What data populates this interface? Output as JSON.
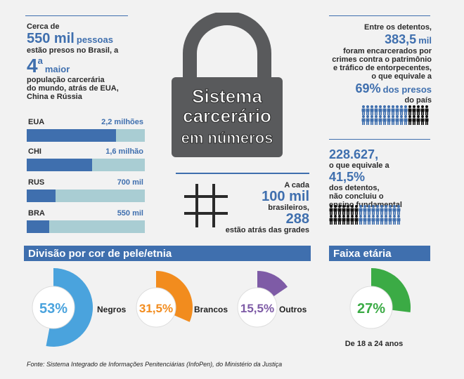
{
  "colors": {
    "accent": "#3f6fae",
    "bar_bg": "#a9cdd3",
    "lock": "#595a5c",
    "negros": "#4aa3dd",
    "brancos": "#f28c1e",
    "outros": "#7e5ba6",
    "faixa": "#3bab45",
    "person_dark": "#111111"
  },
  "top_left": {
    "line1": "Cerca de",
    "big_number": "550 mil",
    "big_suffix": "pessoas",
    "line2": "estão presos no Brasil, a",
    "rank": "4",
    "rank_sup": "a",
    "rank_word": "maior",
    "line3": "população carcerária",
    "line4": "do mundo, atrás de EUA,",
    "line5": "China e Rússia"
  },
  "chart_data": [
    {
      "type": "bar",
      "categories": [
        "EUA",
        "CHI",
        "RUS",
        "BRA"
      ],
      "values": [
        2.2,
        1.6,
        0.7,
        0.55
      ],
      "value_labels": [
        "2,2 milhões",
        "1,6 milhão",
        "700 mil",
        "550 mil"
      ],
      "xlim": [
        0,
        2.9
      ]
    },
    {
      "type": "pie",
      "title": "Divisão por cor de pele/etnia",
      "categories": [
        "Negros",
        "Brancos",
        "Outros"
      ],
      "values": [
        53,
        31.5,
        15.5
      ],
      "value_labels": [
        "53%",
        "31,5%",
        "15,5%"
      ]
    },
    {
      "type": "pie",
      "title": "Faixa etária",
      "categories": [
        "De 18 a 24 anos"
      ],
      "values": [
        27
      ],
      "value_labels": [
        "27%"
      ]
    }
  ],
  "lock": {
    "line1": "Sistema",
    "line2": "carcerário",
    "line3": "em números"
  },
  "grid_stat": {
    "line1": "A cada",
    "big1": "100 mil",
    "line2": "brasileiros,",
    "big2": "288",
    "line3": "estão atrás das grades"
  },
  "top_right": {
    "line1": "Entre os detentos,",
    "big": "383,5",
    "big_suffix": "mil",
    "line2": "foram encarcerados por",
    "line3": "crimes contra o patrimônio",
    "line4": "e tráfico de entorpecentes,",
    "line5": "o que equivale a",
    "pct": "69%",
    "pct_suffix": "dos presos",
    "line6": "do país",
    "people_highlight": 69
  },
  "mid_right": {
    "big1": "228.627",
    "comma": ",",
    "line1": "o que equivale a",
    "big2": "41,5%",
    "line2": "dos detentos,",
    "line3": "não concluiu o",
    "line4": "ensino fundamental",
    "people_highlight": 41.5
  },
  "sections": {
    "etnia": "Divisão por cor de pele/etnia",
    "faixa": "Faixa etária"
  },
  "pies": {
    "negros": {
      "pct": "53%",
      "label": "Negros"
    },
    "brancos": {
      "pct": "31,5%",
      "label": "Brancos"
    },
    "outros": {
      "pct": "15,5%",
      "label": "Outros"
    },
    "faixa": {
      "pct": "27%",
      "label": "De 18 a 24 anos"
    }
  },
  "source": "Fonte: Sistema Integrado de Informações  Penitenciárias (InfoPen), do Ministério da Justiça"
}
